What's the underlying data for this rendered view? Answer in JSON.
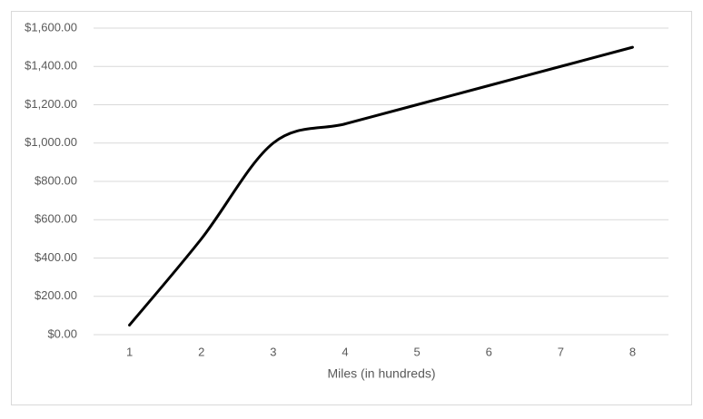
{
  "chart_data": {
    "type": "line",
    "x_label": "Miles (in hundreds)",
    "categories": [
      "1",
      "2",
      "3",
      "4",
      "5",
      "6",
      "7",
      "8"
    ],
    "series": [
      {
        "color": "#000000",
        "values": [
          50,
          500,
          1000,
          1100,
          1200,
          1300,
          1400,
          1500
        ]
      }
    ],
    "smooth": true,
    "ylim": [
      0,
      1600
    ],
    "yticks": [
      {
        "value": 0,
        "label": "$0.00"
      },
      {
        "value": 200,
        "label": "$200.00"
      },
      {
        "value": 400,
        "label": "$400.00"
      },
      {
        "value": 600,
        "label": "$600.00"
      },
      {
        "value": 800,
        "label": "$800.00"
      },
      {
        "value": 1000,
        "label": "$1,000.00"
      },
      {
        "value": 1200,
        "label": "$1,200.00"
      },
      {
        "value": 1400,
        "label": "$1,400.00"
      },
      {
        "value": 1600,
        "label": "$1,600.00"
      }
    ],
    "grid": true
  }
}
